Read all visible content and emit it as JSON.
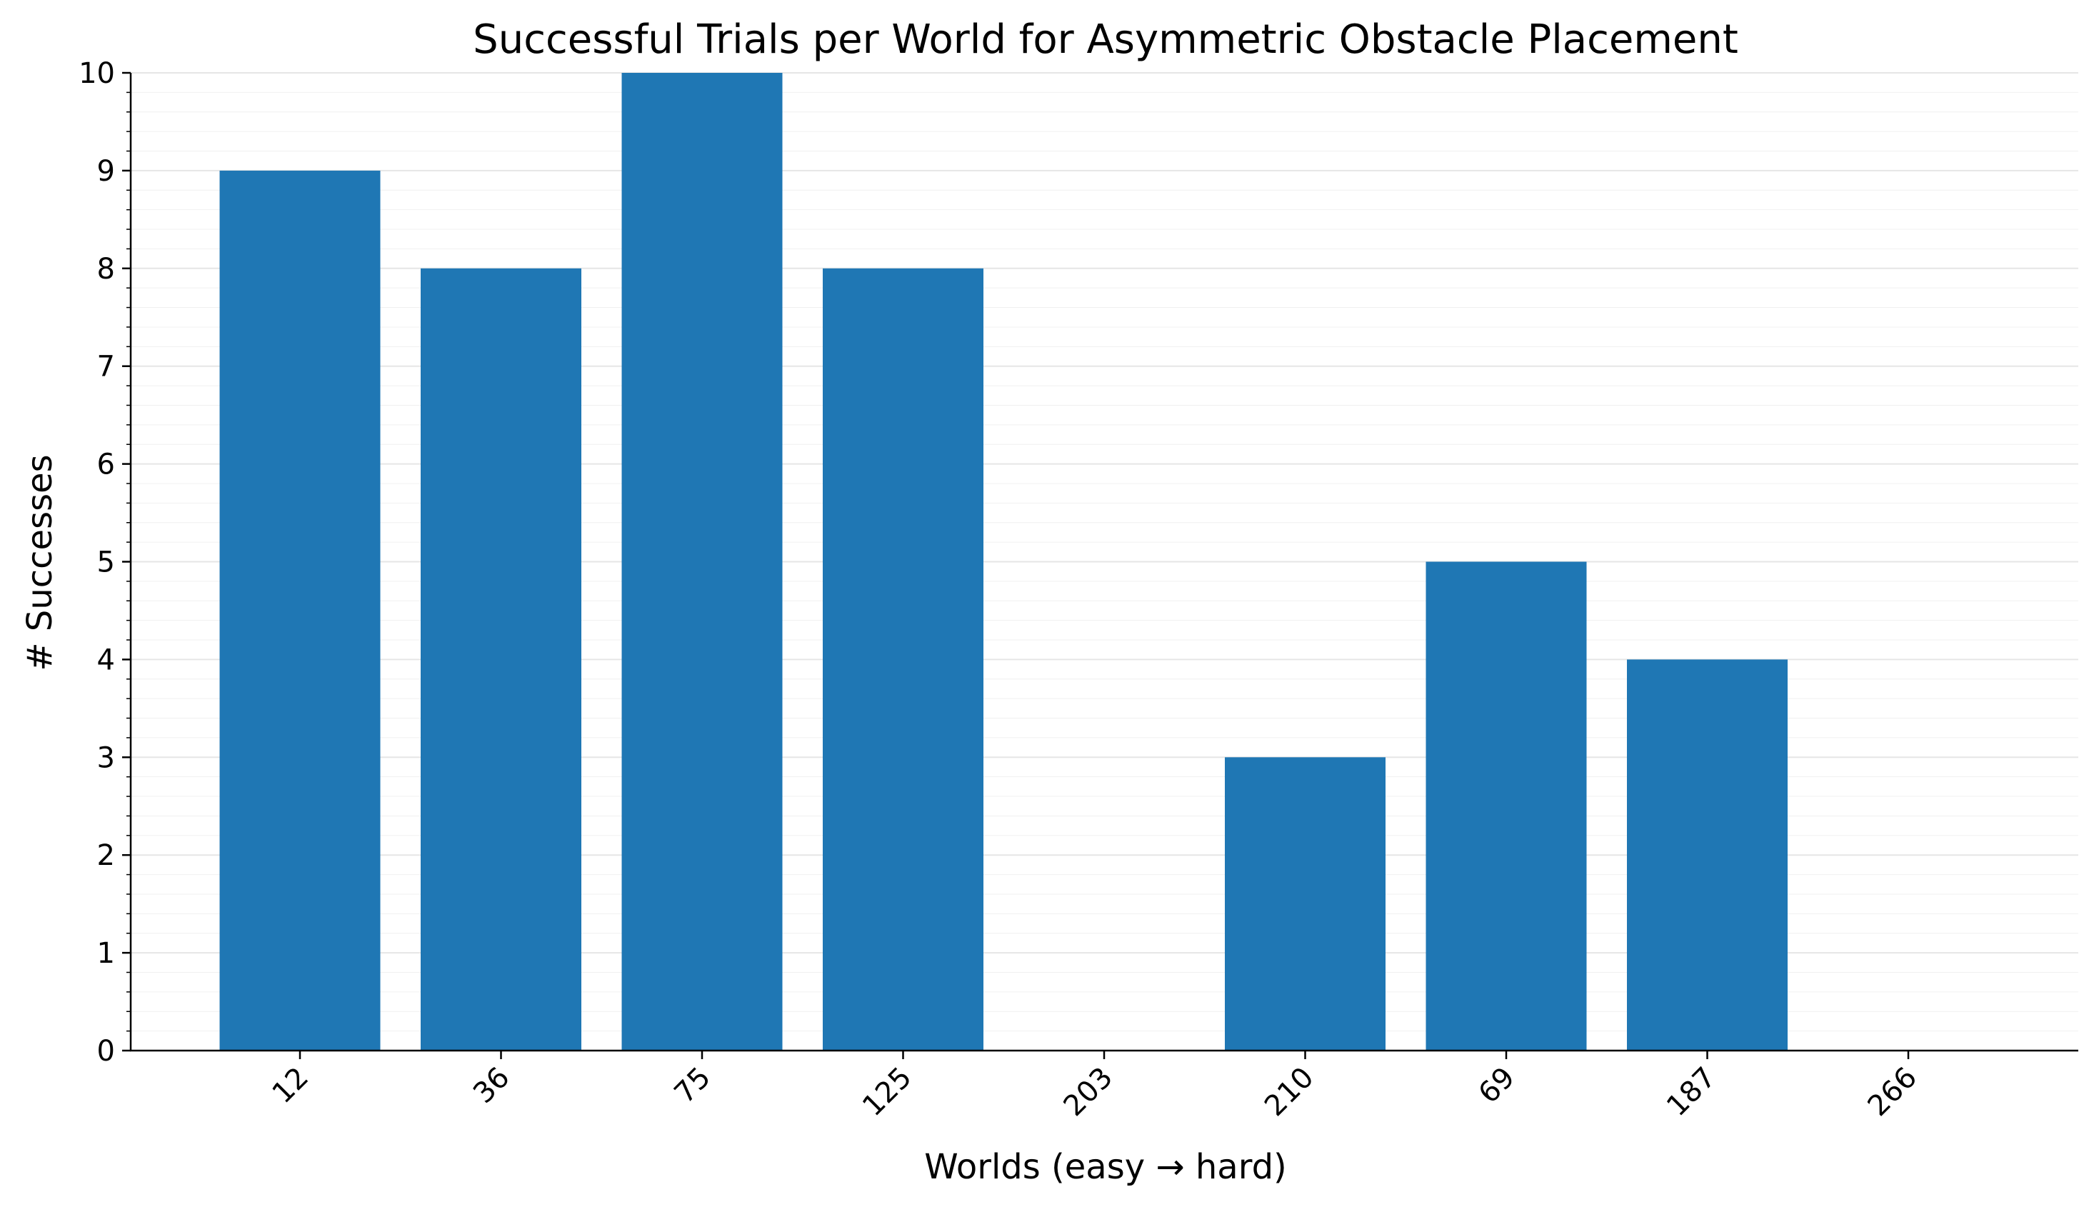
{
  "chart_data": {
    "type": "bar",
    "title": "Successful Trials per World for Asymmetric Obstacle Placement",
    "xlabel": "Worlds (easy → hard)",
    "ylabel": "# Successes",
    "categories": [
      "12",
      "36",
      "75",
      "125",
      "203",
      "210",
      "69",
      "187",
      "266"
    ],
    "values": [
      9,
      8,
      10,
      8,
      0,
      3,
      5,
      4,
      0
    ],
    "ylim": [
      0,
      10
    ],
    "yticks": [
      "0",
      "1",
      "2",
      "3",
      "4",
      "5",
      "6",
      "7",
      "8",
      "9",
      "10"
    ],
    "grid": "horizontal",
    "bar_color": "#1f77b4",
    "grid_color": "#e6e6e6"
  }
}
